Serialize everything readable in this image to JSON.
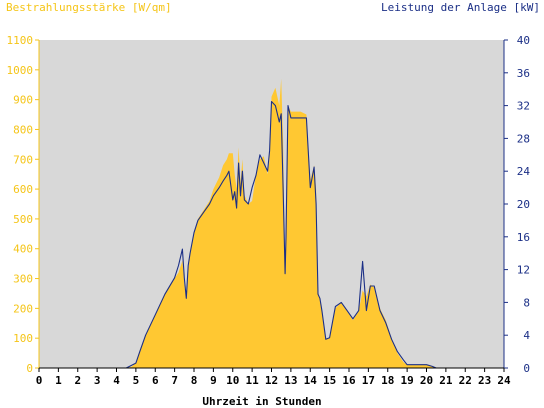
{
  "chart_data": {
    "type": "area",
    "ylabel_left": "Bestrahlungsstärke [W/qm]",
    "ylabel_right": "Leistung der Anlage [kW]",
    "xlabel": "Uhrzeit in Stunden",
    "xlim": [
      0,
      24
    ],
    "ylim_left": [
      0,
      1100
    ],
    "ylim_right": [
      0,
      40
    ],
    "x_ticks": [
      "0",
      "1",
      "2",
      "3",
      "4",
      "5",
      "6",
      "7",
      "8",
      "9",
      "10",
      "11",
      "12",
      "13",
      "14",
      "15",
      "16",
      "17",
      "18",
      "19",
      "20",
      "21",
      "22",
      "23",
      "24"
    ],
    "y_ticks_left": [
      "0",
      "100",
      "200",
      "300",
      "400",
      "500",
      "600",
      "700",
      "800",
      "900",
      "1000",
      "1100"
    ],
    "y_ticks_right": [
      "0",
      "4",
      "8",
      "12",
      "16",
      "20",
      "24",
      "28",
      "32",
      "36",
      "40"
    ],
    "grid": false,
    "colors": {
      "plot_bg": "#d8d8d8",
      "irradiance": "#ffc832",
      "power": "#1b2f86",
      "left_axis": "#f5c518",
      "right_axis": "#1b2f86"
    },
    "series": [
      {
        "name": "Bestrahlungsstärke [W/qm]",
        "axis": "left",
        "x": [
          0,
          4.5,
          4.8,
          5.0,
          5.2,
          5.5,
          5.8,
          6.0,
          6.5,
          7.0,
          7.2,
          7.4,
          7.5,
          7.6,
          7.7,
          7.8,
          8.0,
          8.2,
          8.5,
          8.8,
          9.0,
          9.3,
          9.5,
          9.7,
          9.8,
          10.0,
          10.1,
          10.2,
          10.3,
          10.4,
          10.5,
          10.6,
          10.8,
          11.0,
          11.2,
          11.4,
          11.6,
          11.8,
          11.9,
          12.0,
          12.2,
          12.4,
          12.5,
          12.6,
          12.7,
          12.75,
          12.85,
          13.0,
          13.2,
          13.5,
          13.8,
          14.0,
          14.2,
          14.3,
          14.4,
          14.5,
          14.6,
          14.8,
          15.0,
          15.3,
          15.6,
          15.9,
          16.2,
          16.5,
          16.7,
          16.9,
          17.1,
          17.3,
          17.6,
          17.9,
          18.2,
          18.5,
          18.8,
          19.0,
          19.5,
          20.0,
          20.3,
          20.5,
          24
        ],
        "values": [
          0,
          0,
          5,
          20,
          60,
          110,
          150,
          180,
          250,
          300,
          320,
          360,
          280,
          230,
          330,
          380,
          450,
          500,
          530,
          560,
          600,
          640,
          680,
          700,
          720,
          720,
          650,
          600,
          740,
          620,
          700,
          580,
          550,
          560,
          650,
          700,
          710,
          650,
          700,
          910,
          940,
          880,
          970,
          760,
          320,
          500,
          880,
          860,
          860,
          860,
          850,
          630,
          680,
          600,
          260,
          230,
          190,
          100,
          100,
          200,
          220,
          190,
          160,
          190,
          260,
          240,
          280,
          270,
          200,
          160,
          100,
          50,
          20,
          10,
          10,
          10,
          5,
          0,
          0
        ]
      },
      {
        "name": "Leistung der Anlage [kW]",
        "axis": "right",
        "x": [
          0,
          4.5,
          5.0,
          5.2,
          5.5,
          6.0,
          6.5,
          7.0,
          7.2,
          7.4,
          7.5,
          7.6,
          7.7,
          7.8,
          8.0,
          8.2,
          8.5,
          8.8,
          9.0,
          9.3,
          9.5,
          9.7,
          9.8,
          10.0,
          10.1,
          10.2,
          10.3,
          10.4,
          10.5,
          10.6,
          10.8,
          11.0,
          11.2,
          11.4,
          11.6,
          11.8,
          11.9,
          12.0,
          12.2,
          12.4,
          12.5,
          12.6,
          12.7,
          12.75,
          12.85,
          13.0,
          13.2,
          13.5,
          13.8,
          14.0,
          14.2,
          14.3,
          14.4,
          14.5,
          14.6,
          14.8,
          15.0,
          15.3,
          15.6,
          15.9,
          16.2,
          16.5,
          16.7,
          16.9,
          17.1,
          17.3,
          17.6,
          17.9,
          18.2,
          18.5,
          18.8,
          19.0,
          19.5,
          20.0,
          20.3,
          20.5,
          24
        ],
        "values": [
          0,
          0,
          0.6,
          2.0,
          4.0,
          6.5,
          9.0,
          11.0,
          12.5,
          14.5,
          11.0,
          8.5,
          12.5,
          14.0,
          16.5,
          18.0,
          19.0,
          20.0,
          21.0,
          22.0,
          22.8,
          23.5,
          24.0,
          20.5,
          21.5,
          19.5,
          25.0,
          21.0,
          24.0,
          20.5,
          20.0,
          22.0,
          23.5,
          26.0,
          25.0,
          24.0,
          26.5,
          32.5,
          32.0,
          30.0,
          31.0,
          22.0,
          11.5,
          16.0,
          32.0,
          30.5,
          30.5,
          30.5,
          30.5,
          22.0,
          24.5,
          20.0,
          9.0,
          8.5,
          7.0,
          3.5,
          3.7,
          7.5,
          8.0,
          7.0,
          6.0,
          7.0,
          13.0,
          7.0,
          10.0,
          10.0,
          7.0,
          5.5,
          3.5,
          2.0,
          1.0,
          0.4,
          0.4,
          0.4,
          0.2,
          0,
          0
        ]
      }
    ]
  }
}
